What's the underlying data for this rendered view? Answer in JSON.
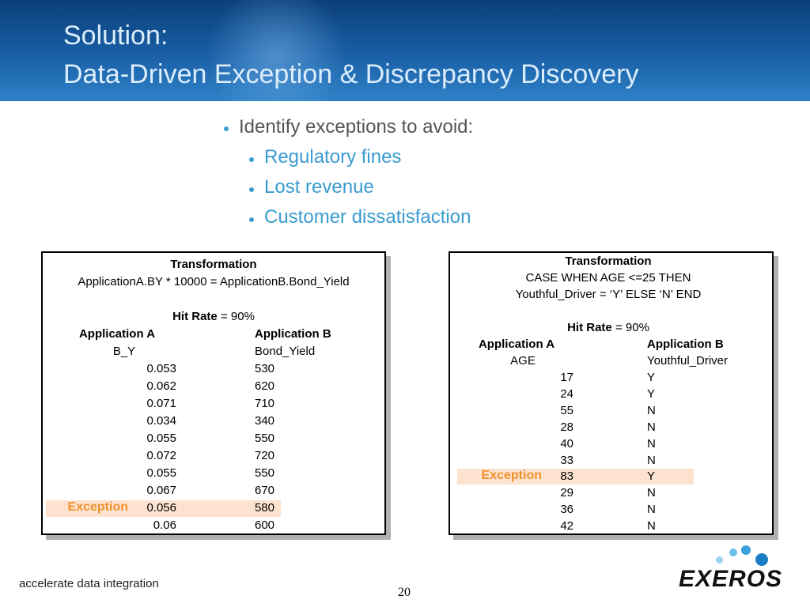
{
  "header": {
    "title_line1": "Solution:",
    "title_line2": "Data-Driven Exception & Discrepancy Discovery"
  },
  "bullets": {
    "main": "Identify exceptions to avoid:",
    "items": [
      "Regulatory fines",
      "Lost revenue",
      "Customer dissatisfaction"
    ]
  },
  "tables": [
    {
      "transformation_label": "Transformation",
      "transformation": [
        "ApplicationA.BY * 10000 = ApplicationB.Bond_Yield"
      ],
      "hit_rate_label": "Hit Rate",
      "hit_rate_value": "= 90%",
      "columns": [
        "Application A",
        "Application B"
      ],
      "fields": [
        "B_Y",
        "Bond_Yield"
      ],
      "rows": [
        {
          "values": [
            "0.053",
            "530"
          ]
        },
        {
          "values": [
            "0.062",
            "620"
          ]
        },
        {
          "values": [
            "0.071",
            "710"
          ]
        },
        {
          "values": [
            "0.034",
            "340"
          ]
        },
        {
          "values": [
            "0.055",
            "550"
          ]
        },
        {
          "values": [
            "0.072",
            "720"
          ]
        },
        {
          "values": [
            "0.055",
            "550"
          ]
        },
        {
          "values": [
            "0.067",
            "670"
          ]
        },
        {
          "values": [
            "0.056",
            "580"
          ],
          "label": "Exception"
        },
        {
          "values": [
            "0.06",
            "600"
          ]
        }
      ]
    },
    {
      "transformation_label": "Transformation",
      "transformation": [
        "CASE WHEN AGE <=25 THEN",
        "Youthful_Driver = ‘Y’ ELSE ‘N’ END"
      ],
      "hit_rate_label": "Hit Rate",
      "hit_rate_value": "= 90%",
      "columns": [
        "Application A",
        "Application B"
      ],
      "fields": [
        "AGE",
        "Youthful_Driver"
      ],
      "rows": [
        {
          "values": [
            "17",
            "Y"
          ]
        },
        {
          "values": [
            "24",
            "Y"
          ]
        },
        {
          "values": [
            "55",
            "N"
          ]
        },
        {
          "values": [
            "28",
            "N"
          ]
        },
        {
          "values": [
            "40",
            "N"
          ]
        },
        {
          "values": [
            "33",
            "N"
          ]
        },
        {
          "values": [
            "83",
            "Y"
          ],
          "label": "Exception"
        },
        {
          "values": [
            "29",
            "N"
          ]
        },
        {
          "values": [
            "36",
            "N"
          ]
        },
        {
          "values": [
            "42",
            "N"
          ]
        }
      ]
    }
  ],
  "footer": {
    "tagline": "accelerate data integration",
    "page_number": "20",
    "logo": "EXEROS"
  }
}
